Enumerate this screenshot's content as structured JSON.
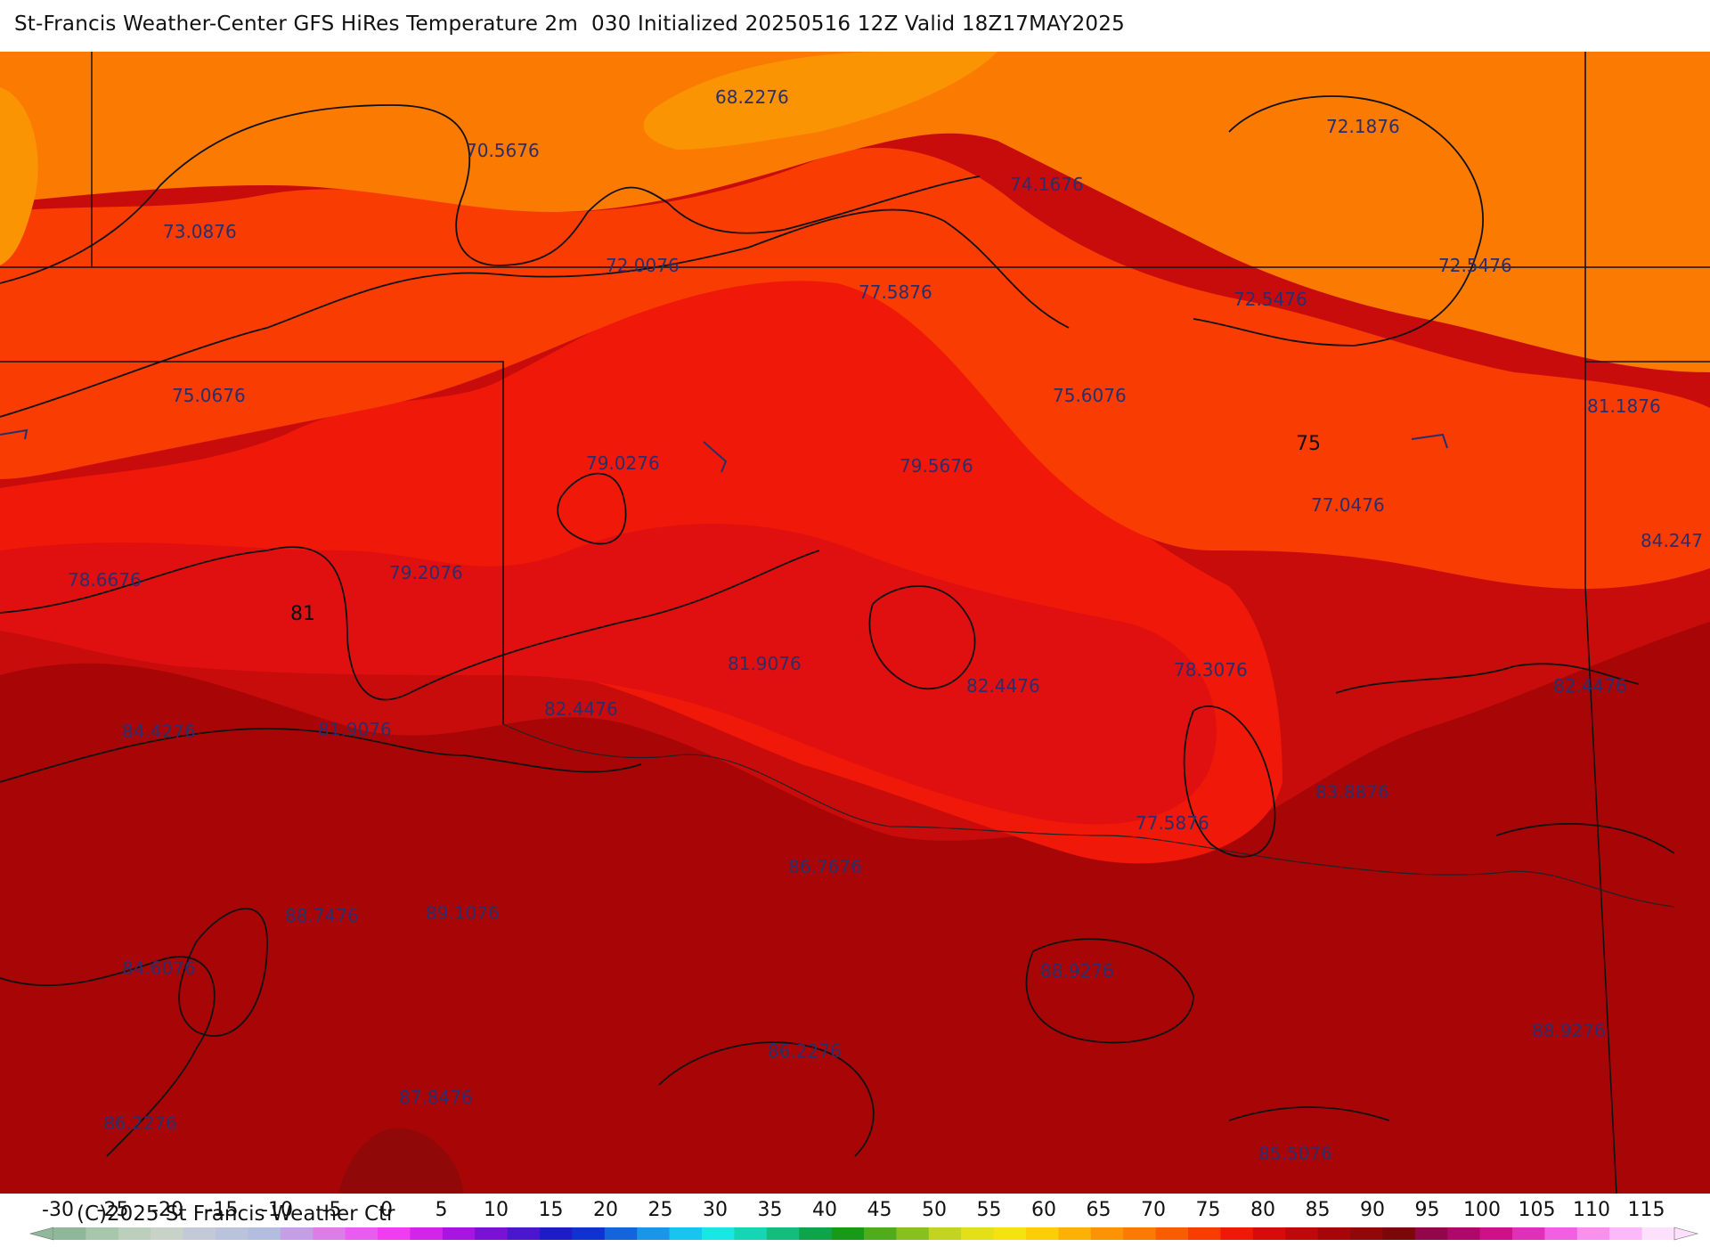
{
  "title": "St-Francis Weather-Center GFS HiRes Temperature 2m  030 Initialized 20250516 12Z Valid 18Z17MAY2025",
  "copyright": "(C)2025 St Francis Weather Ctr",
  "isotherm_labels": [
    {
      "id": "iso-81",
      "text": "81"
    },
    {
      "id": "iso-75",
      "text": "75"
    }
  ],
  "station_values": [
    "68.2276",
    "70.5676",
    "73.0876",
    "72.0076",
    "74.1676",
    "72.1876",
    "72.5476",
    "72.5476",
    "77.5876",
    "75.0676",
    "75.6076",
    "81.1876",
    "79.0276",
    "79.5676",
    "77.0476",
    "84.247",
    "78.6676",
    "79.2076",
    "81.9076",
    "78.3076",
    "82.4476",
    "82.4476",
    "84.4276",
    "81.9076",
    "82.4476",
    "83.8876",
    "77.5876",
    "86.7676",
    "88.7476",
    "89.1076",
    "84.6076",
    "88.9276",
    "86.2276",
    "88.9276",
    "86.2276",
    "87.8476",
    "85.5076"
  ],
  "legend": {
    "ticks": [
      "-30",
      "-25",
      "-20",
      "-15",
      "-10",
      "-5",
      "0",
      "5",
      "10",
      "15",
      "20",
      "25",
      "30",
      "35",
      "40",
      "45",
      "50",
      "55",
      "60",
      "65",
      "70",
      "75",
      "80",
      "85",
      "90",
      "95",
      "100",
      "105",
      "110",
      "115"
    ],
    "colors": [
      "#8fb89a",
      "#a6c7ab",
      "#bccfbd",
      "#c8d2c9",
      "#c4c9d8",
      "#b9c3dc",
      "#b2bde0",
      "#c49ee6",
      "#dc7ee8",
      "#e85cf0",
      "#f23cf0",
      "#d325e8",
      "#a715e2",
      "#7b10d6",
      "#4b16d0",
      "#1c1cc8",
      "#0f33d2",
      "#1464dc",
      "#1c95e6",
      "#16c6ee",
      "#17e8e6",
      "#15d6b4",
      "#12bd7e",
      "#10a44a",
      "#189a18",
      "#4fac1c",
      "#88c020",
      "#c2d420",
      "#e4e018",
      "#f6e20e",
      "#fbcf08",
      "#fbb204",
      "#fb9402",
      "#fa7a02",
      "#f95c02",
      "#f83c02",
      "#f01808",
      "#d80a0a",
      "#c00808",
      "#a80606",
      "#900808",
      "#7a0808",
      "#92064a",
      "#b0086a",
      "#d0108a",
      "#e030b8",
      "#f060e0",
      "#f890f0",
      "#fcb8f8",
      "#fde0fc"
    ]
  }
}
